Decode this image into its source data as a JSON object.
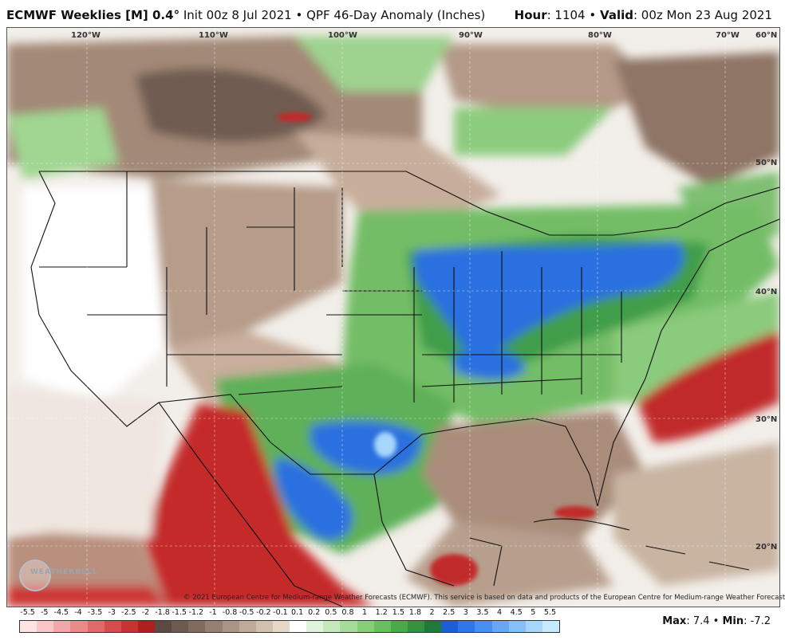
{
  "header": {
    "model": "ECMWF Weeklies [M] 0.4",
    "deg": "°",
    "init": "Init 00z 8 Jul 2021",
    "bullet": "•",
    "product": "QPF 46-Day Anomaly (Inches)",
    "hour_label": "Hour",
    "hour_value": ": 1104",
    "bullet2": "•",
    "valid_label": "Valid",
    "valid_value": ": 00z Mon 23 Aug 2021"
  },
  "map": {
    "lon_labels": [
      "120°W",
      "110°W",
      "100°W",
      "90°W",
      "80°W",
      "70°W"
    ],
    "lat_labels": [
      "60°N",
      "50°N",
      "40°N",
      "30°N",
      "20°N"
    ],
    "copyright": "© 2021 European Centre for Medium-range Weather Forecasts (ECMWF). This service is based on data and products of the European Centre for Medium-range Weather Forecasts (ECMWF).",
    "logo_text": "WEATHERBELL"
  },
  "legend": {
    "labels": [
      "-5.5",
      "-5",
      "-4.5",
      "-4",
      "-3.5",
      "-3",
      "-2.5",
      "-2",
      "-1.8",
      "-1.5",
      "-1.2",
      "-1",
      "-0.8",
      "-0.5",
      "-0.2",
      "-0.1",
      "0.1",
      "0.2",
      "0.5",
      "0.8",
      "1",
      "1.2",
      "1.5",
      "1.8",
      "2",
      "2.5",
      "3",
      "3.5",
      "4",
      "4.5",
      "5",
      "5.5"
    ],
    "colors": [
      "#fde3e3",
      "#f8c6c6",
      "#f2a8a8",
      "#ea8a8a",
      "#e06a6a",
      "#d64c4c",
      "#c73333",
      "#b01f1f",
      "#5c4a42",
      "#6e5a50",
      "#816b5f",
      "#957f72",
      "#a99486",
      "#bfa998",
      "#d3bfad",
      "#e6d8c9",
      "#ffffff",
      "#e2f3dc",
      "#c5e8bb",
      "#a6dc99",
      "#86cf78",
      "#67c05b",
      "#4aa948",
      "#329240",
      "#1f7a3a",
      "#1a5fd8",
      "#2c78e8",
      "#4890f0",
      "#66a8f4",
      "#85c0f8",
      "#a6d6fb",
      "#c6ebff"
    ]
  },
  "stats": {
    "max_label": "Max",
    "max_value": ": 7.4",
    "bullet": "•",
    "min_label": "Min",
    "min_value": ": -7.2"
  }
}
